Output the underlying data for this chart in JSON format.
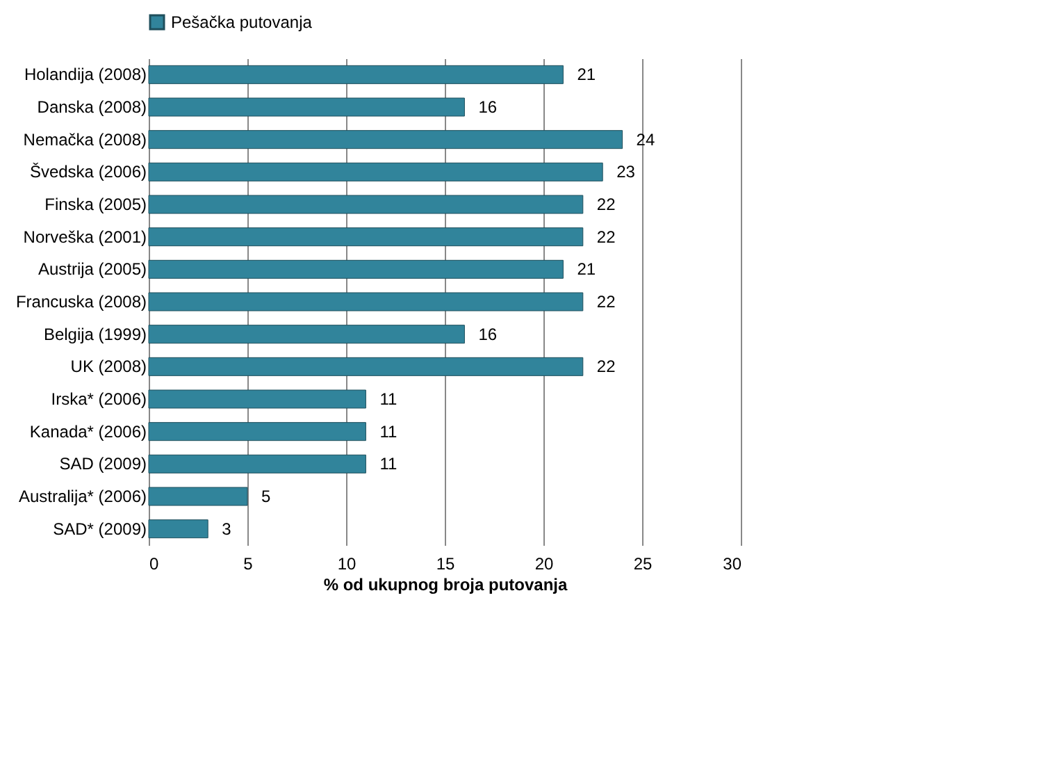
{
  "chart_data": {
    "type": "bar",
    "orientation": "horizontal",
    "xlabel": "% od ukupnog broja putovanja",
    "categories": [
      "Holandija (2008)",
      "Danska (2008)",
      "Nemačka (2008)",
      "Švedska (2006)",
      "Finska (2005)",
      "Norveška (2001)",
      "Austrija (2005)",
      "Francuska (2008)",
      "Belgija (1999)",
      "UK (2008)",
      "Irska* (2006)",
      "Kanada* (2006)",
      "SAD (2009)",
      "Australija* (2006)",
      "SAD* (2009)"
    ],
    "series": [
      {
        "name": "Pešačka putovanja",
        "color": "#31849b",
        "values": [
          21,
          16,
          24,
          23,
          22,
          22,
          21,
          22,
          16,
          22,
          11,
          11,
          11,
          5,
          3
        ]
      }
    ],
    "xlim": [
      0,
      30
    ],
    "xticks": [
      0,
      5,
      10,
      15,
      20,
      25,
      30
    ],
    "grid": "x",
    "legend": "top",
    "data_labels": true
  }
}
